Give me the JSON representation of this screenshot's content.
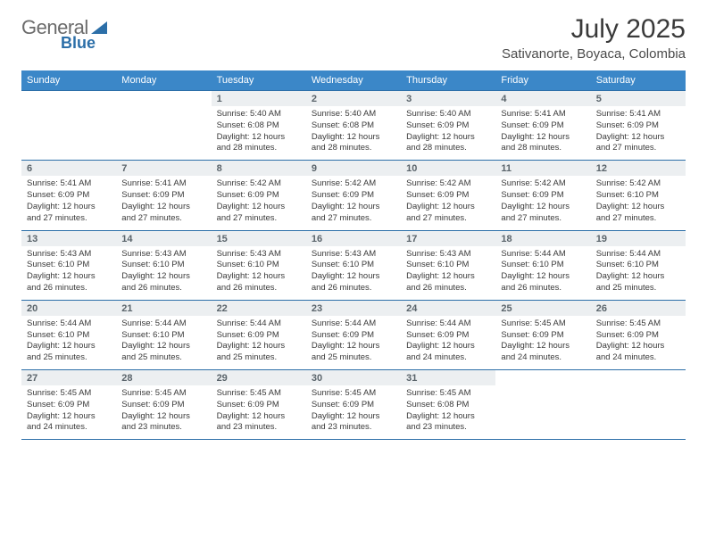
{
  "logo": {
    "general": "General",
    "blue": "Blue"
  },
  "title": "July 2025",
  "location": "Sativanorte, Boyaca, Colombia",
  "colors": {
    "header_blue": "#3b87c8",
    "divider_blue": "#2c6fa8",
    "daynum_bg": "#eceff1",
    "logo_gray": "#6b6b6b",
    "logo_blue": "#2c6fa8"
  },
  "weekdays": [
    "Sunday",
    "Monday",
    "Tuesday",
    "Wednesday",
    "Thursday",
    "Friday",
    "Saturday"
  ],
  "weeks": [
    [
      {},
      {},
      {
        "n": "1",
        "sr": "Sunrise: 5:40 AM",
        "ss": "Sunset: 6:08 PM",
        "d1": "Daylight: 12 hours",
        "d2": "and 28 minutes."
      },
      {
        "n": "2",
        "sr": "Sunrise: 5:40 AM",
        "ss": "Sunset: 6:08 PM",
        "d1": "Daylight: 12 hours",
        "d2": "and 28 minutes."
      },
      {
        "n": "3",
        "sr": "Sunrise: 5:40 AM",
        "ss": "Sunset: 6:09 PM",
        "d1": "Daylight: 12 hours",
        "d2": "and 28 minutes."
      },
      {
        "n": "4",
        "sr": "Sunrise: 5:41 AM",
        "ss": "Sunset: 6:09 PM",
        "d1": "Daylight: 12 hours",
        "d2": "and 28 minutes."
      },
      {
        "n": "5",
        "sr": "Sunrise: 5:41 AM",
        "ss": "Sunset: 6:09 PM",
        "d1": "Daylight: 12 hours",
        "d2": "and 27 minutes."
      }
    ],
    [
      {
        "n": "6",
        "sr": "Sunrise: 5:41 AM",
        "ss": "Sunset: 6:09 PM",
        "d1": "Daylight: 12 hours",
        "d2": "and 27 minutes."
      },
      {
        "n": "7",
        "sr": "Sunrise: 5:41 AM",
        "ss": "Sunset: 6:09 PM",
        "d1": "Daylight: 12 hours",
        "d2": "and 27 minutes."
      },
      {
        "n": "8",
        "sr": "Sunrise: 5:42 AM",
        "ss": "Sunset: 6:09 PM",
        "d1": "Daylight: 12 hours",
        "d2": "and 27 minutes."
      },
      {
        "n": "9",
        "sr": "Sunrise: 5:42 AM",
        "ss": "Sunset: 6:09 PM",
        "d1": "Daylight: 12 hours",
        "d2": "and 27 minutes."
      },
      {
        "n": "10",
        "sr": "Sunrise: 5:42 AM",
        "ss": "Sunset: 6:09 PM",
        "d1": "Daylight: 12 hours",
        "d2": "and 27 minutes."
      },
      {
        "n": "11",
        "sr": "Sunrise: 5:42 AM",
        "ss": "Sunset: 6:09 PM",
        "d1": "Daylight: 12 hours",
        "d2": "and 27 minutes."
      },
      {
        "n": "12",
        "sr": "Sunrise: 5:42 AM",
        "ss": "Sunset: 6:10 PM",
        "d1": "Daylight: 12 hours",
        "d2": "and 27 minutes."
      }
    ],
    [
      {
        "n": "13",
        "sr": "Sunrise: 5:43 AM",
        "ss": "Sunset: 6:10 PM",
        "d1": "Daylight: 12 hours",
        "d2": "and 26 minutes."
      },
      {
        "n": "14",
        "sr": "Sunrise: 5:43 AM",
        "ss": "Sunset: 6:10 PM",
        "d1": "Daylight: 12 hours",
        "d2": "and 26 minutes."
      },
      {
        "n": "15",
        "sr": "Sunrise: 5:43 AM",
        "ss": "Sunset: 6:10 PM",
        "d1": "Daylight: 12 hours",
        "d2": "and 26 minutes."
      },
      {
        "n": "16",
        "sr": "Sunrise: 5:43 AM",
        "ss": "Sunset: 6:10 PM",
        "d1": "Daylight: 12 hours",
        "d2": "and 26 minutes."
      },
      {
        "n": "17",
        "sr": "Sunrise: 5:43 AM",
        "ss": "Sunset: 6:10 PM",
        "d1": "Daylight: 12 hours",
        "d2": "and 26 minutes."
      },
      {
        "n": "18",
        "sr": "Sunrise: 5:44 AM",
        "ss": "Sunset: 6:10 PM",
        "d1": "Daylight: 12 hours",
        "d2": "and 26 minutes."
      },
      {
        "n": "19",
        "sr": "Sunrise: 5:44 AM",
        "ss": "Sunset: 6:10 PM",
        "d1": "Daylight: 12 hours",
        "d2": "and 25 minutes."
      }
    ],
    [
      {
        "n": "20",
        "sr": "Sunrise: 5:44 AM",
        "ss": "Sunset: 6:10 PM",
        "d1": "Daylight: 12 hours",
        "d2": "and 25 minutes."
      },
      {
        "n": "21",
        "sr": "Sunrise: 5:44 AM",
        "ss": "Sunset: 6:10 PM",
        "d1": "Daylight: 12 hours",
        "d2": "and 25 minutes."
      },
      {
        "n": "22",
        "sr": "Sunrise: 5:44 AM",
        "ss": "Sunset: 6:09 PM",
        "d1": "Daylight: 12 hours",
        "d2": "and 25 minutes."
      },
      {
        "n": "23",
        "sr": "Sunrise: 5:44 AM",
        "ss": "Sunset: 6:09 PM",
        "d1": "Daylight: 12 hours",
        "d2": "and 25 minutes."
      },
      {
        "n": "24",
        "sr": "Sunrise: 5:44 AM",
        "ss": "Sunset: 6:09 PM",
        "d1": "Daylight: 12 hours",
        "d2": "and 24 minutes."
      },
      {
        "n": "25",
        "sr": "Sunrise: 5:45 AM",
        "ss": "Sunset: 6:09 PM",
        "d1": "Daylight: 12 hours",
        "d2": "and 24 minutes."
      },
      {
        "n": "26",
        "sr": "Sunrise: 5:45 AM",
        "ss": "Sunset: 6:09 PM",
        "d1": "Daylight: 12 hours",
        "d2": "and 24 minutes."
      }
    ],
    [
      {
        "n": "27",
        "sr": "Sunrise: 5:45 AM",
        "ss": "Sunset: 6:09 PM",
        "d1": "Daylight: 12 hours",
        "d2": "and 24 minutes."
      },
      {
        "n": "28",
        "sr": "Sunrise: 5:45 AM",
        "ss": "Sunset: 6:09 PM",
        "d1": "Daylight: 12 hours",
        "d2": "and 23 minutes."
      },
      {
        "n": "29",
        "sr": "Sunrise: 5:45 AM",
        "ss": "Sunset: 6:09 PM",
        "d1": "Daylight: 12 hours",
        "d2": "and 23 minutes."
      },
      {
        "n": "30",
        "sr": "Sunrise: 5:45 AM",
        "ss": "Sunset: 6:09 PM",
        "d1": "Daylight: 12 hours",
        "d2": "and 23 minutes."
      },
      {
        "n": "31",
        "sr": "Sunrise: 5:45 AM",
        "ss": "Sunset: 6:08 PM",
        "d1": "Daylight: 12 hours",
        "d2": "and 23 minutes."
      },
      {},
      {}
    ]
  ]
}
